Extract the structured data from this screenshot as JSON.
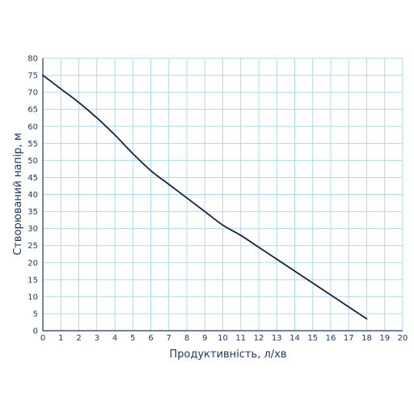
{
  "chart_data": {
    "type": "line",
    "xlabel": "Продуктивність, л/хв",
    "ylabel": "Створюваний напір, м",
    "xlim": [
      0,
      20
    ],
    "ylim": [
      0,
      80
    ],
    "x_ticks": [
      "0",
      "1",
      "2",
      "3",
      "4",
      "5",
      "6",
      "7",
      "8",
      "9",
      "10",
      "11",
      "12",
      "13",
      "14",
      "15",
      "16",
      "17",
      "18",
      "19",
      "20"
    ],
    "y_ticks": [
      "0",
      "5",
      "10",
      "15",
      "20",
      "25",
      "30",
      "35",
      "40",
      "45",
      "50",
      "55",
      "60",
      "65",
      "70",
      "75",
      "80"
    ],
    "grid": true,
    "series": [
      {
        "x": [
          0,
          1,
          2,
          3,
          4,
          5,
          6,
          7,
          8,
          9,
          10,
          11,
          12,
          13,
          14,
          15,
          16,
          17,
          18
        ],
        "y": [
          75,
          71,
          67,
          62.5,
          57.5,
          52,
          47,
          43,
          39,
          35,
          31,
          28,
          24.5,
          21,
          17.5,
          14,
          10.5,
          7,
          3.5
        ]
      }
    ],
    "colors": {
      "line": "#0f2446",
      "grid": "#a9dcef",
      "text": "#1b3a6b"
    }
  }
}
